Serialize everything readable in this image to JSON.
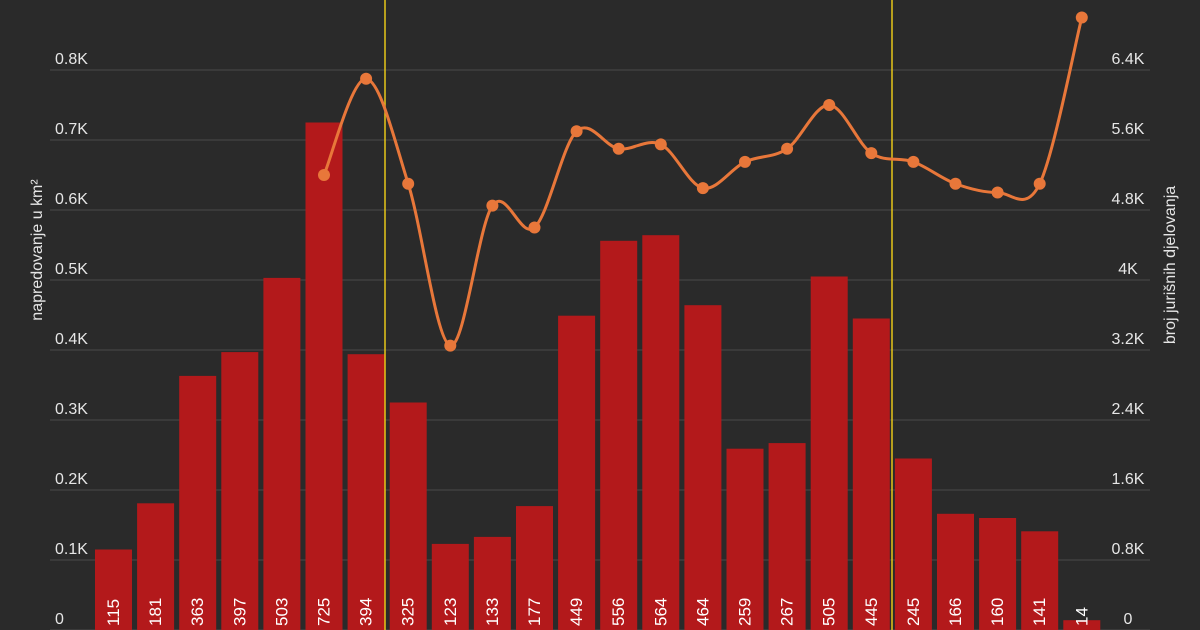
{
  "chart_data": {
    "type": "bar-line",
    "y_label": "napredovanje u km²",
    "y2_label": "broj jurišnih djelovanja",
    "ylim": [
      0,
      900
    ],
    "yticks": [
      0,
      {
        "value": 100,
        "label": "0.1K"
      },
      {
        "value": 200,
        "label": "0.2K"
      },
      {
        "value": 300,
        "label": "0.3K"
      },
      {
        "value": 400,
        "label": "0.4K"
      },
      {
        "value": 500,
        "label": "0.5K"
      },
      {
        "value": 600,
        "label": "0.6K"
      },
      {
        "value": 700,
        "label": "0.7K"
      },
      {
        "value": 800,
        "label": "0.8K"
      }
    ],
    "y2lim": [
      0,
      7200
    ],
    "y2ticks": [
      0,
      {
        "value": 800,
        "label": "0.8K"
      },
      {
        "value": 1600,
        "label": "1.6K"
      },
      {
        "value": 2400,
        "label": "2.4K"
      },
      {
        "value": 3200,
        "label": "3.2K"
      },
      {
        "value": 4000,
        "label": "4K"
      },
      {
        "value": 4800,
        "label": "4.8K"
      },
      {
        "value": 5600,
        "label": "5.6K"
      },
      {
        "value": 6400,
        "label": "6.4K"
      }
    ],
    "grid": true,
    "series": [
      {
        "type": "bar",
        "color": "#b3191b",
        "values": [
          115,
          181,
          363,
          397,
          503,
          725,
          394,
          325,
          123,
          133,
          177,
          449,
          556,
          564,
          464,
          259,
          267,
          505,
          445,
          245,
          166,
          160,
          141,
          14
        ]
      },
      {
        "type": "line",
        "axis": "y2",
        "color": "#e8773a",
        "values": [
          null,
          null,
          null,
          null,
          null,
          5200,
          6300,
          5100,
          3250,
          4850,
          4600,
          5700,
          5500,
          5550,
          5050,
          5350,
          5500,
          6000,
          5450,
          5350,
          5100,
          5000,
          5100,
          7000
        ]
      }
    ]
  }
}
